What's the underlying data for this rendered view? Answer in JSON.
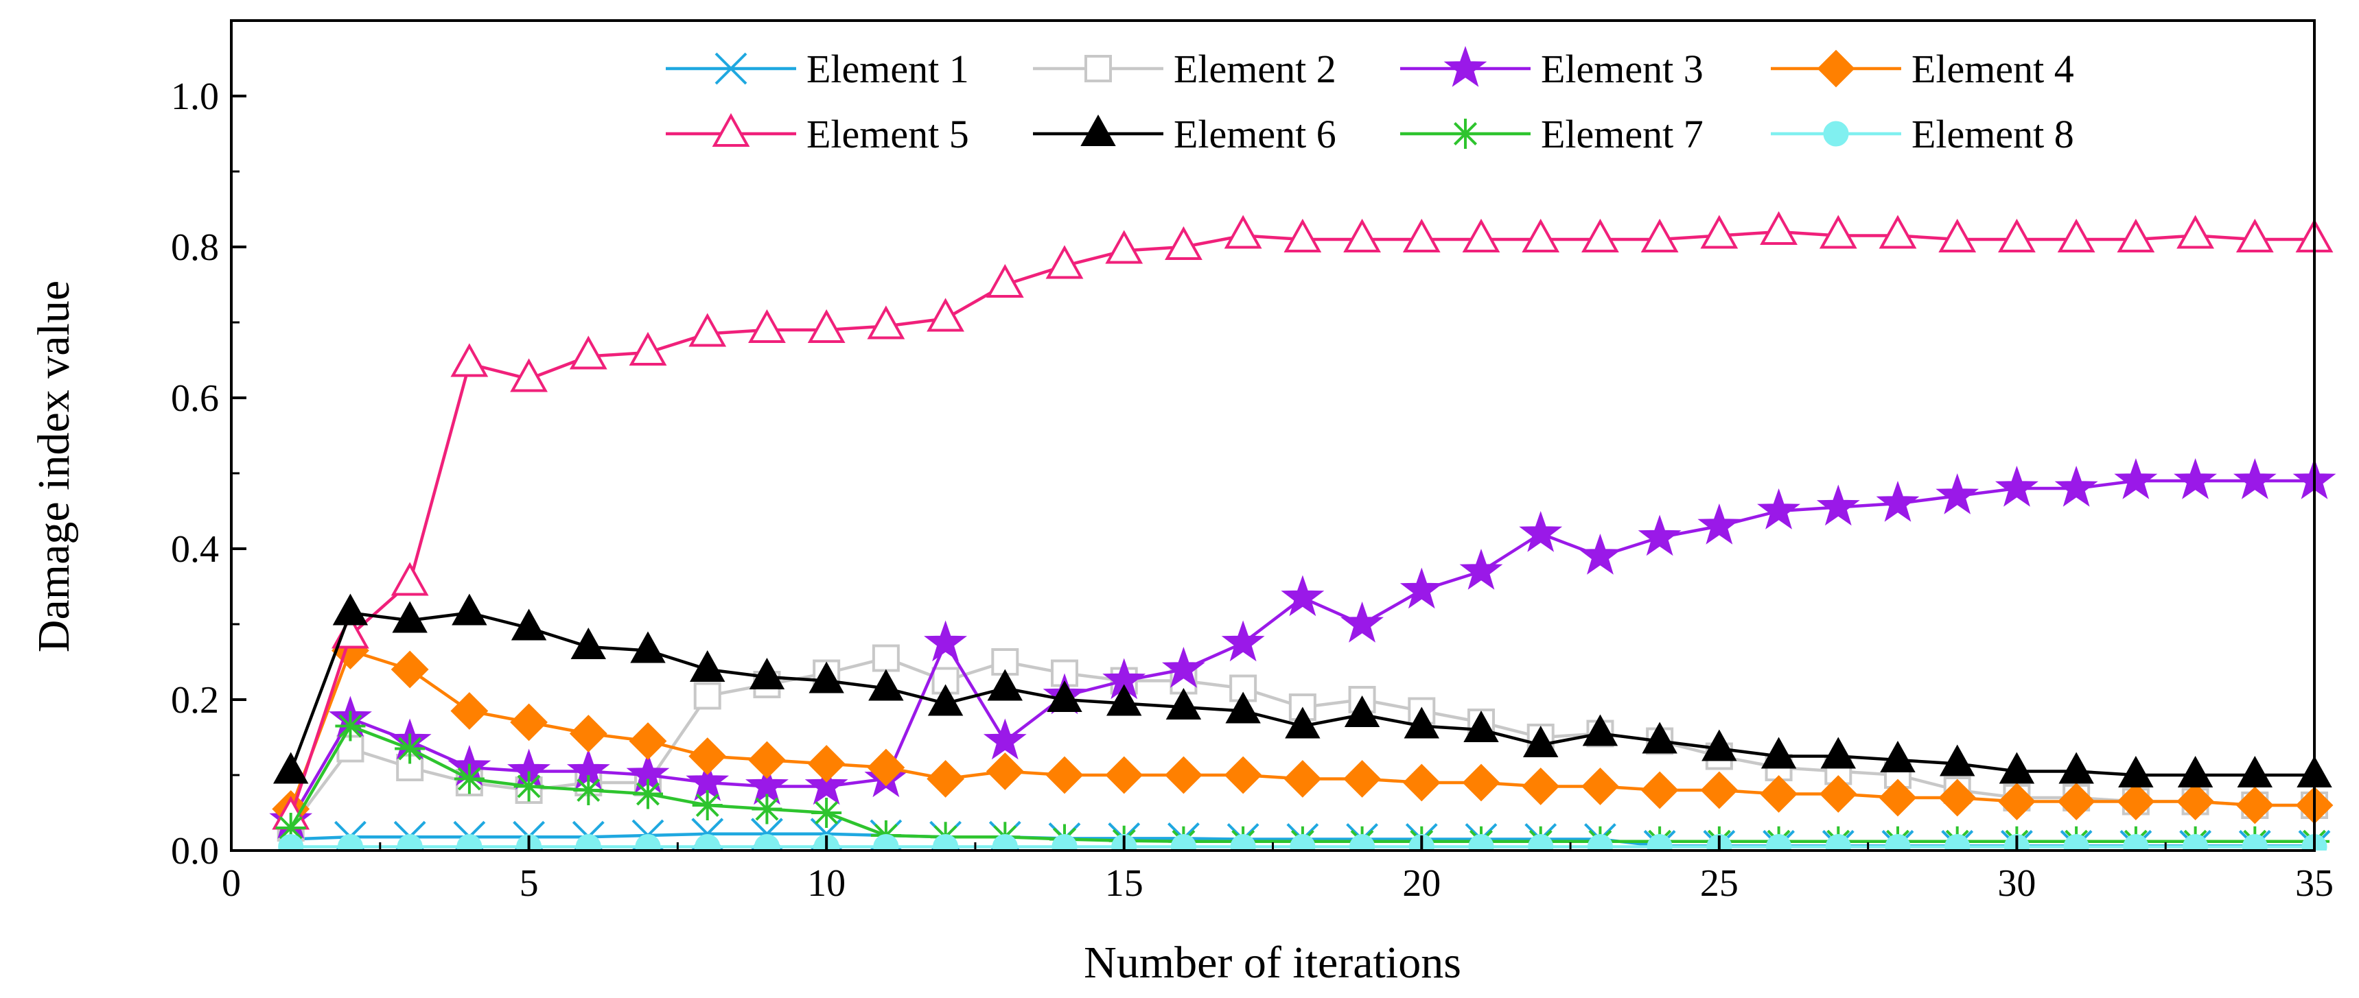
{
  "chart_data": {
    "type": "line",
    "xlabel": "Number of iterations",
    "ylabel": "Damage index value",
    "xlim": [
      0,
      35
    ],
    "ylim": [
      0,
      1.1
    ],
    "xticks": [
      "0",
      "5",
      "10",
      "15",
      "20",
      "25",
      "30",
      "35"
    ],
    "yticks": [
      "0.0",
      "0.2",
      "0.4",
      "0.6",
      "0.8",
      "1.0"
    ],
    "grid": false,
    "legend_position": "top",
    "x": [
      1,
      2,
      3,
      4,
      5,
      6,
      7,
      8,
      9,
      10,
      11,
      12,
      13,
      14,
      15,
      16,
      17,
      18,
      19,
      20,
      21,
      22,
      23,
      24,
      25,
      26,
      27,
      28,
      29,
      30,
      31,
      32,
      33,
      34,
      35
    ],
    "series": [
      {
        "name": "Element 1",
        "color": "#1fa8e0",
        "marker": "x",
        "values": [
          0.015,
          0.018,
          0.018,
          0.018,
          0.018,
          0.018,
          0.02,
          0.022,
          0.022,
          0.022,
          0.02,
          0.018,
          0.018,
          0.016,
          0.016,
          0.016,
          0.015,
          0.015,
          0.015,
          0.015,
          0.015,
          0.015,
          0.015,
          0.006,
          0.006,
          0.006,
          0.006,
          0.006,
          0.006,
          0.006,
          0.006,
          0.006,
          0.006,
          0.006,
          0.006
        ]
      },
      {
        "name": "Element 2",
        "color": "#c8c8c8",
        "marker": "open-square",
        "values": [
          0.03,
          0.135,
          0.11,
          0.09,
          0.08,
          0.09,
          0.09,
          0.205,
          0.22,
          0.235,
          0.255,
          0.225,
          0.25,
          0.235,
          0.225,
          0.225,
          0.215,
          0.19,
          0.2,
          0.185,
          0.17,
          0.15,
          0.155,
          0.145,
          0.125,
          0.11,
          0.105,
          0.1,
          0.08,
          0.07,
          0.07,
          0.065,
          0.065,
          0.06,
          0.06
        ]
      },
      {
        "name": "Element 3",
        "color": "#9a19e8",
        "marker": "star",
        "values": [
          0.04,
          0.175,
          0.145,
          0.11,
          0.105,
          0.105,
          0.1,
          0.09,
          0.085,
          0.085,
          0.095,
          0.275,
          0.145,
          0.205,
          0.225,
          0.24,
          0.275,
          0.335,
          0.3,
          0.345,
          0.37,
          0.42,
          0.39,
          0.415,
          0.43,
          0.45,
          0.455,
          0.46,
          0.47,
          0.48,
          0.48,
          0.49,
          0.49,
          0.49,
          0.49
        ]
      },
      {
        "name": "Element 4",
        "color": "#ff8000",
        "marker": "diamond",
        "values": [
          0.055,
          0.265,
          0.24,
          0.185,
          0.17,
          0.155,
          0.145,
          0.125,
          0.12,
          0.115,
          0.11,
          0.095,
          0.105,
          0.1,
          0.1,
          0.1,
          0.1,
          0.095,
          0.095,
          0.09,
          0.09,
          0.085,
          0.085,
          0.08,
          0.08,
          0.075,
          0.075,
          0.07,
          0.07,
          0.065,
          0.065,
          0.065,
          0.065,
          0.06,
          0.06
        ]
      },
      {
        "name": "Element 5",
        "color": "#f0207a",
        "marker": "open-triangle",
        "values": [
          0.045,
          0.285,
          0.355,
          0.645,
          0.625,
          0.655,
          0.66,
          0.685,
          0.69,
          0.69,
          0.695,
          0.705,
          0.75,
          0.775,
          0.795,
          0.8,
          0.815,
          0.81,
          0.81,
          0.81,
          0.81,
          0.81,
          0.81,
          0.81,
          0.815,
          0.82,
          0.815,
          0.815,
          0.81,
          0.81,
          0.81,
          0.81,
          0.815,
          0.81,
          0.81
        ]
      },
      {
        "name": "Element 6",
        "color": "#000000",
        "marker": "triangle",
        "values": [
          0.105,
          0.315,
          0.305,
          0.315,
          0.295,
          0.27,
          0.265,
          0.24,
          0.23,
          0.225,
          0.215,
          0.195,
          0.215,
          0.2,
          0.195,
          0.19,
          0.185,
          0.165,
          0.18,
          0.165,
          0.16,
          0.14,
          0.155,
          0.145,
          0.135,
          0.125,
          0.125,
          0.12,
          0.115,
          0.105,
          0.105,
          0.1,
          0.1,
          0.1,
          0.1
        ]
      },
      {
        "name": "Element 7",
        "color": "#2ec42e",
        "marker": "asterisk",
        "values": [
          0.03,
          0.165,
          0.135,
          0.095,
          0.085,
          0.08,
          0.075,
          0.06,
          0.055,
          0.05,
          0.02,
          0.018,
          0.018,
          0.015,
          0.013,
          0.012,
          0.012,
          0.012,
          0.012,
          0.012,
          0.012,
          0.012,
          0.012,
          0.012,
          0.012,
          0.012,
          0.012,
          0.012,
          0.012,
          0.012,
          0.012,
          0.012,
          0.012,
          0.012,
          0.012
        ]
      },
      {
        "name": "Element 8",
        "color": "#80f0f0",
        "marker": "circle",
        "values": [
          0.005,
          0.005,
          0.005,
          0.005,
          0.005,
          0.005,
          0.005,
          0.005,
          0.005,
          0.005,
          0.005,
          0.005,
          0.005,
          0.005,
          0.005,
          0.005,
          0.005,
          0.005,
          0.005,
          0.005,
          0.005,
          0.005,
          0.005,
          0.005,
          0.005,
          0.005,
          0.005,
          0.005,
          0.005,
          0.005,
          0.005,
          0.005,
          0.005,
          0.005,
          0.005
        ]
      }
    ]
  }
}
